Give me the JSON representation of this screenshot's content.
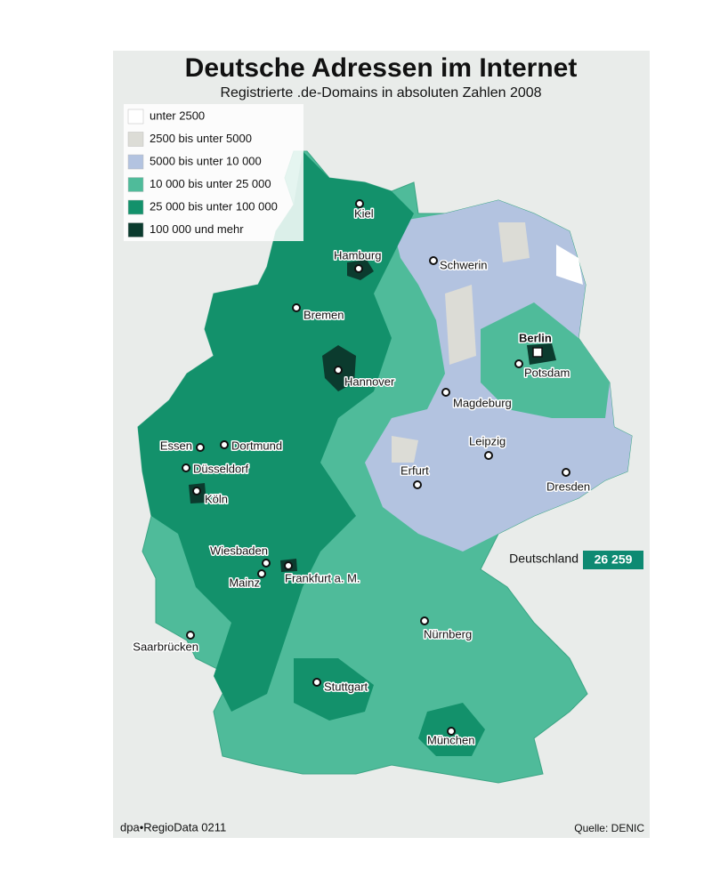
{
  "header": {
    "title": "Deutsche Adressen im Internet",
    "subtitle": "Registrierte .de-Domains in absoluten Zahlen 2008"
  },
  "legend": {
    "items": [
      {
        "label": "unter 2500",
        "color": "#ffffff"
      },
      {
        "label": "2500 bis unter 5000",
        "color": "#dcdcd6"
      },
      {
        "label": "5000 bis unter 10 000",
        "color": "#b3c3e0"
      },
      {
        "label": "10 000 bis unter 25 000",
        "color": "#4fbb9a"
      },
      {
        "label": "25 000 bis unter 100 000",
        "color": "#13916b"
      },
      {
        "label": "100 000 und mehr",
        "color": "#0b3b2e"
      }
    ]
  },
  "cities": [
    {
      "name": "Kiel"
    },
    {
      "name": "Hamburg"
    },
    {
      "name": "Schwerin"
    },
    {
      "name": "Bremen"
    },
    {
      "name": "Berlin"
    },
    {
      "name": "Potsdam"
    },
    {
      "name": "Hannover"
    },
    {
      "name": "Magdeburg"
    },
    {
      "name": "Essen"
    },
    {
      "name": "Dortmund"
    },
    {
      "name": "Düsseldorf"
    },
    {
      "name": "Köln"
    },
    {
      "name": "Leipzig"
    },
    {
      "name": "Erfurt"
    },
    {
      "name": "Dresden"
    },
    {
      "name": "Wiesbaden"
    },
    {
      "name": "Mainz"
    },
    {
      "name": "Frankfurt a. M."
    },
    {
      "name": "Saarbrücken"
    },
    {
      "name": "Nürnberg"
    },
    {
      "name": "Stuttgart"
    },
    {
      "name": "München"
    }
  ],
  "total": {
    "label": "Deutschland",
    "value": "26 259"
  },
  "footer": {
    "credit": "dpa•RegioData 0211",
    "source": "Quelle: DENIC"
  }
}
